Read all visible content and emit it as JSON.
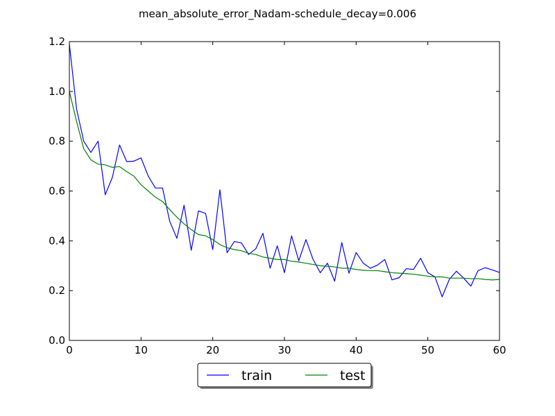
{
  "chart_data": {
    "type": "line",
    "title": "mean_absolute_error_Nadam-schedule_decay=0.006",
    "xlabel": "",
    "ylabel": "",
    "xlim": [
      0,
      60
    ],
    "ylim": [
      0.0,
      1.2
    ],
    "x_ticks": [
      0,
      10,
      20,
      30,
      40,
      50,
      60
    ],
    "x_tick_labels": [
      "0",
      "10",
      "20",
      "30",
      "40",
      "50",
      "60"
    ],
    "y_ticks": [
      0.0,
      0.2,
      0.4,
      0.6,
      0.8,
      1.0,
      1.2
    ],
    "y_tick_labels": [
      "0.0",
      "0.2",
      "0.4",
      "0.6",
      "0.8",
      "1.0",
      "1.2"
    ],
    "grid": false,
    "legend": {
      "placement": "bottom-center-outside",
      "columns": 2
    },
    "x": [
      0,
      1,
      2,
      3,
      4,
      5,
      6,
      7,
      8,
      9,
      10,
      11,
      12,
      13,
      14,
      15,
      16,
      17,
      18,
      19,
      20,
      21,
      22,
      23,
      24,
      25,
      26,
      27,
      28,
      29,
      30,
      31,
      32,
      33,
      34,
      35,
      36,
      37,
      38,
      39,
      40,
      41,
      42,
      43,
      44,
      45,
      46,
      47,
      48,
      49,
      50,
      51,
      52,
      53,
      54,
      55,
      56,
      57,
      58,
      59,
      60
    ],
    "series": [
      {
        "name": "train",
        "color": "#0000ff",
        "values": [
          1.19,
          0.93,
          0.8,
          0.755,
          0.8,
          0.585,
          0.655,
          0.785,
          0.718,
          0.72,
          0.733,
          0.66,
          0.612,
          0.612,
          0.478,
          0.41,
          0.543,
          0.362,
          0.52,
          0.51,
          0.365,
          0.605,
          0.352,
          0.397,
          0.392,
          0.345,
          0.368,
          0.43,
          0.29,
          0.38,
          0.272,
          0.42,
          0.32,
          0.405,
          0.325,
          0.272,
          0.31,
          0.238,
          0.393,
          0.27,
          0.353,
          0.31,
          0.29,
          0.303,
          0.325,
          0.243,
          0.252,
          0.288,
          0.285,
          0.33,
          0.272,
          0.255,
          0.175,
          0.245,
          0.278,
          0.25,
          0.218,
          0.28,
          0.292,
          0.283,
          0.273
        ]
      },
      {
        "name": "test",
        "color": "#008000",
        "values": [
          1.0,
          0.88,
          0.77,
          0.725,
          0.708,
          0.705,
          0.695,
          0.698,
          0.678,
          0.66,
          0.625,
          0.6,
          0.575,
          0.558,
          0.525,
          0.495,
          0.468,
          0.445,
          0.425,
          0.42,
          0.405,
          0.385,
          0.372,
          0.365,
          0.36,
          0.35,
          0.345,
          0.335,
          0.33,
          0.325,
          0.325,
          0.318,
          0.315,
          0.31,
          0.305,
          0.3,
          0.298,
          0.295,
          0.29,
          0.29,
          0.285,
          0.282,
          0.28,
          0.28,
          0.276,
          0.272,
          0.27,
          0.268,
          0.266,
          0.262,
          0.258,
          0.255,
          0.255,
          0.25,
          0.25,
          0.25,
          0.248,
          0.248,
          0.245,
          0.243,
          0.245
        ]
      }
    ]
  }
}
